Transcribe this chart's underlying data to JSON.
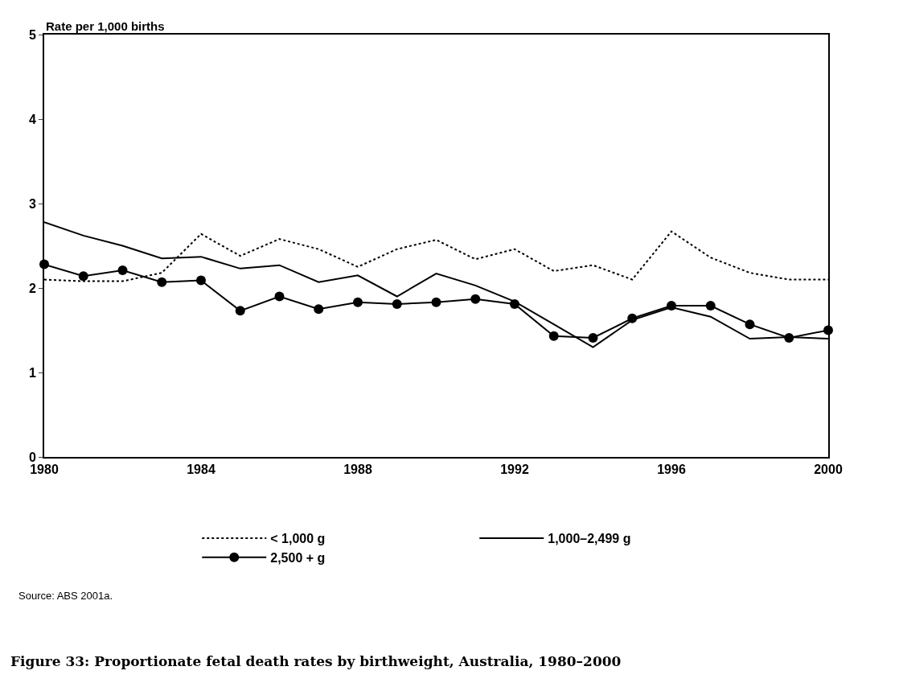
{
  "chart_data": {
    "type": "line",
    "title": "Figure 33: Proportionate fetal death rates by birthweight, Australia, 1980–2000",
    "ylabel": "Rate per 1,000 births",
    "annotations": [
      "Source: ABS 2001a."
    ],
    "x": [
      1980,
      1981,
      1982,
      1983,
      1984,
      1985,
      1986,
      1987,
      1988,
      1989,
      1990,
      1991,
      1992,
      1993,
      1994,
      1995,
      1996,
      1997,
      1998,
      1999,
      2000
    ],
    "series": [
      {
        "name": "< 1,000 g",
        "color": "#000000",
        "line_style": "dotted",
        "marker": "none",
        "values": [
          2.1,
          2.08,
          2.08,
          2.18,
          2.64,
          2.38,
          2.58,
          2.46,
          2.25,
          2.46,
          2.57,
          2.34,
          2.46,
          2.2,
          2.27,
          2.1,
          2.67,
          2.36,
          2.18,
          2.1,
          2.1
        ]
      },
      {
        "name": "1,000–2,499 g",
        "color": "#000000",
        "line_style": "solid",
        "marker": "none",
        "values": [
          2.78,
          2.62,
          2.5,
          2.35,
          2.37,
          2.23,
          2.27,
          2.07,
          2.15,
          1.9,
          2.17,
          2.03,
          1.84,
          1.57,
          1.3,
          1.62,
          1.77,
          1.66,
          1.4,
          1.42,
          1.4
        ]
      },
      {
        "name": "2,500 + g",
        "color": "#000000",
        "line_style": "solid",
        "marker": "circle",
        "values": [
          2.28,
          2.14,
          2.21,
          2.07,
          2.09,
          1.73,
          1.9,
          1.75,
          1.83,
          1.81,
          1.83,
          1.87,
          1.81,
          1.43,
          1.41,
          1.64,
          1.79,
          1.79,
          1.57,
          1.41,
          1.5
        ]
      }
    ],
    "xlim": [
      1980,
      2000
    ],
    "xticks": [
      1980,
      1984,
      1988,
      1992,
      1996,
      2000
    ],
    "ylim": [
      0,
      5
    ],
    "yticks": [
      0,
      1,
      2,
      3,
      4,
      5
    ],
    "grid": false,
    "legend": "bottom"
  }
}
